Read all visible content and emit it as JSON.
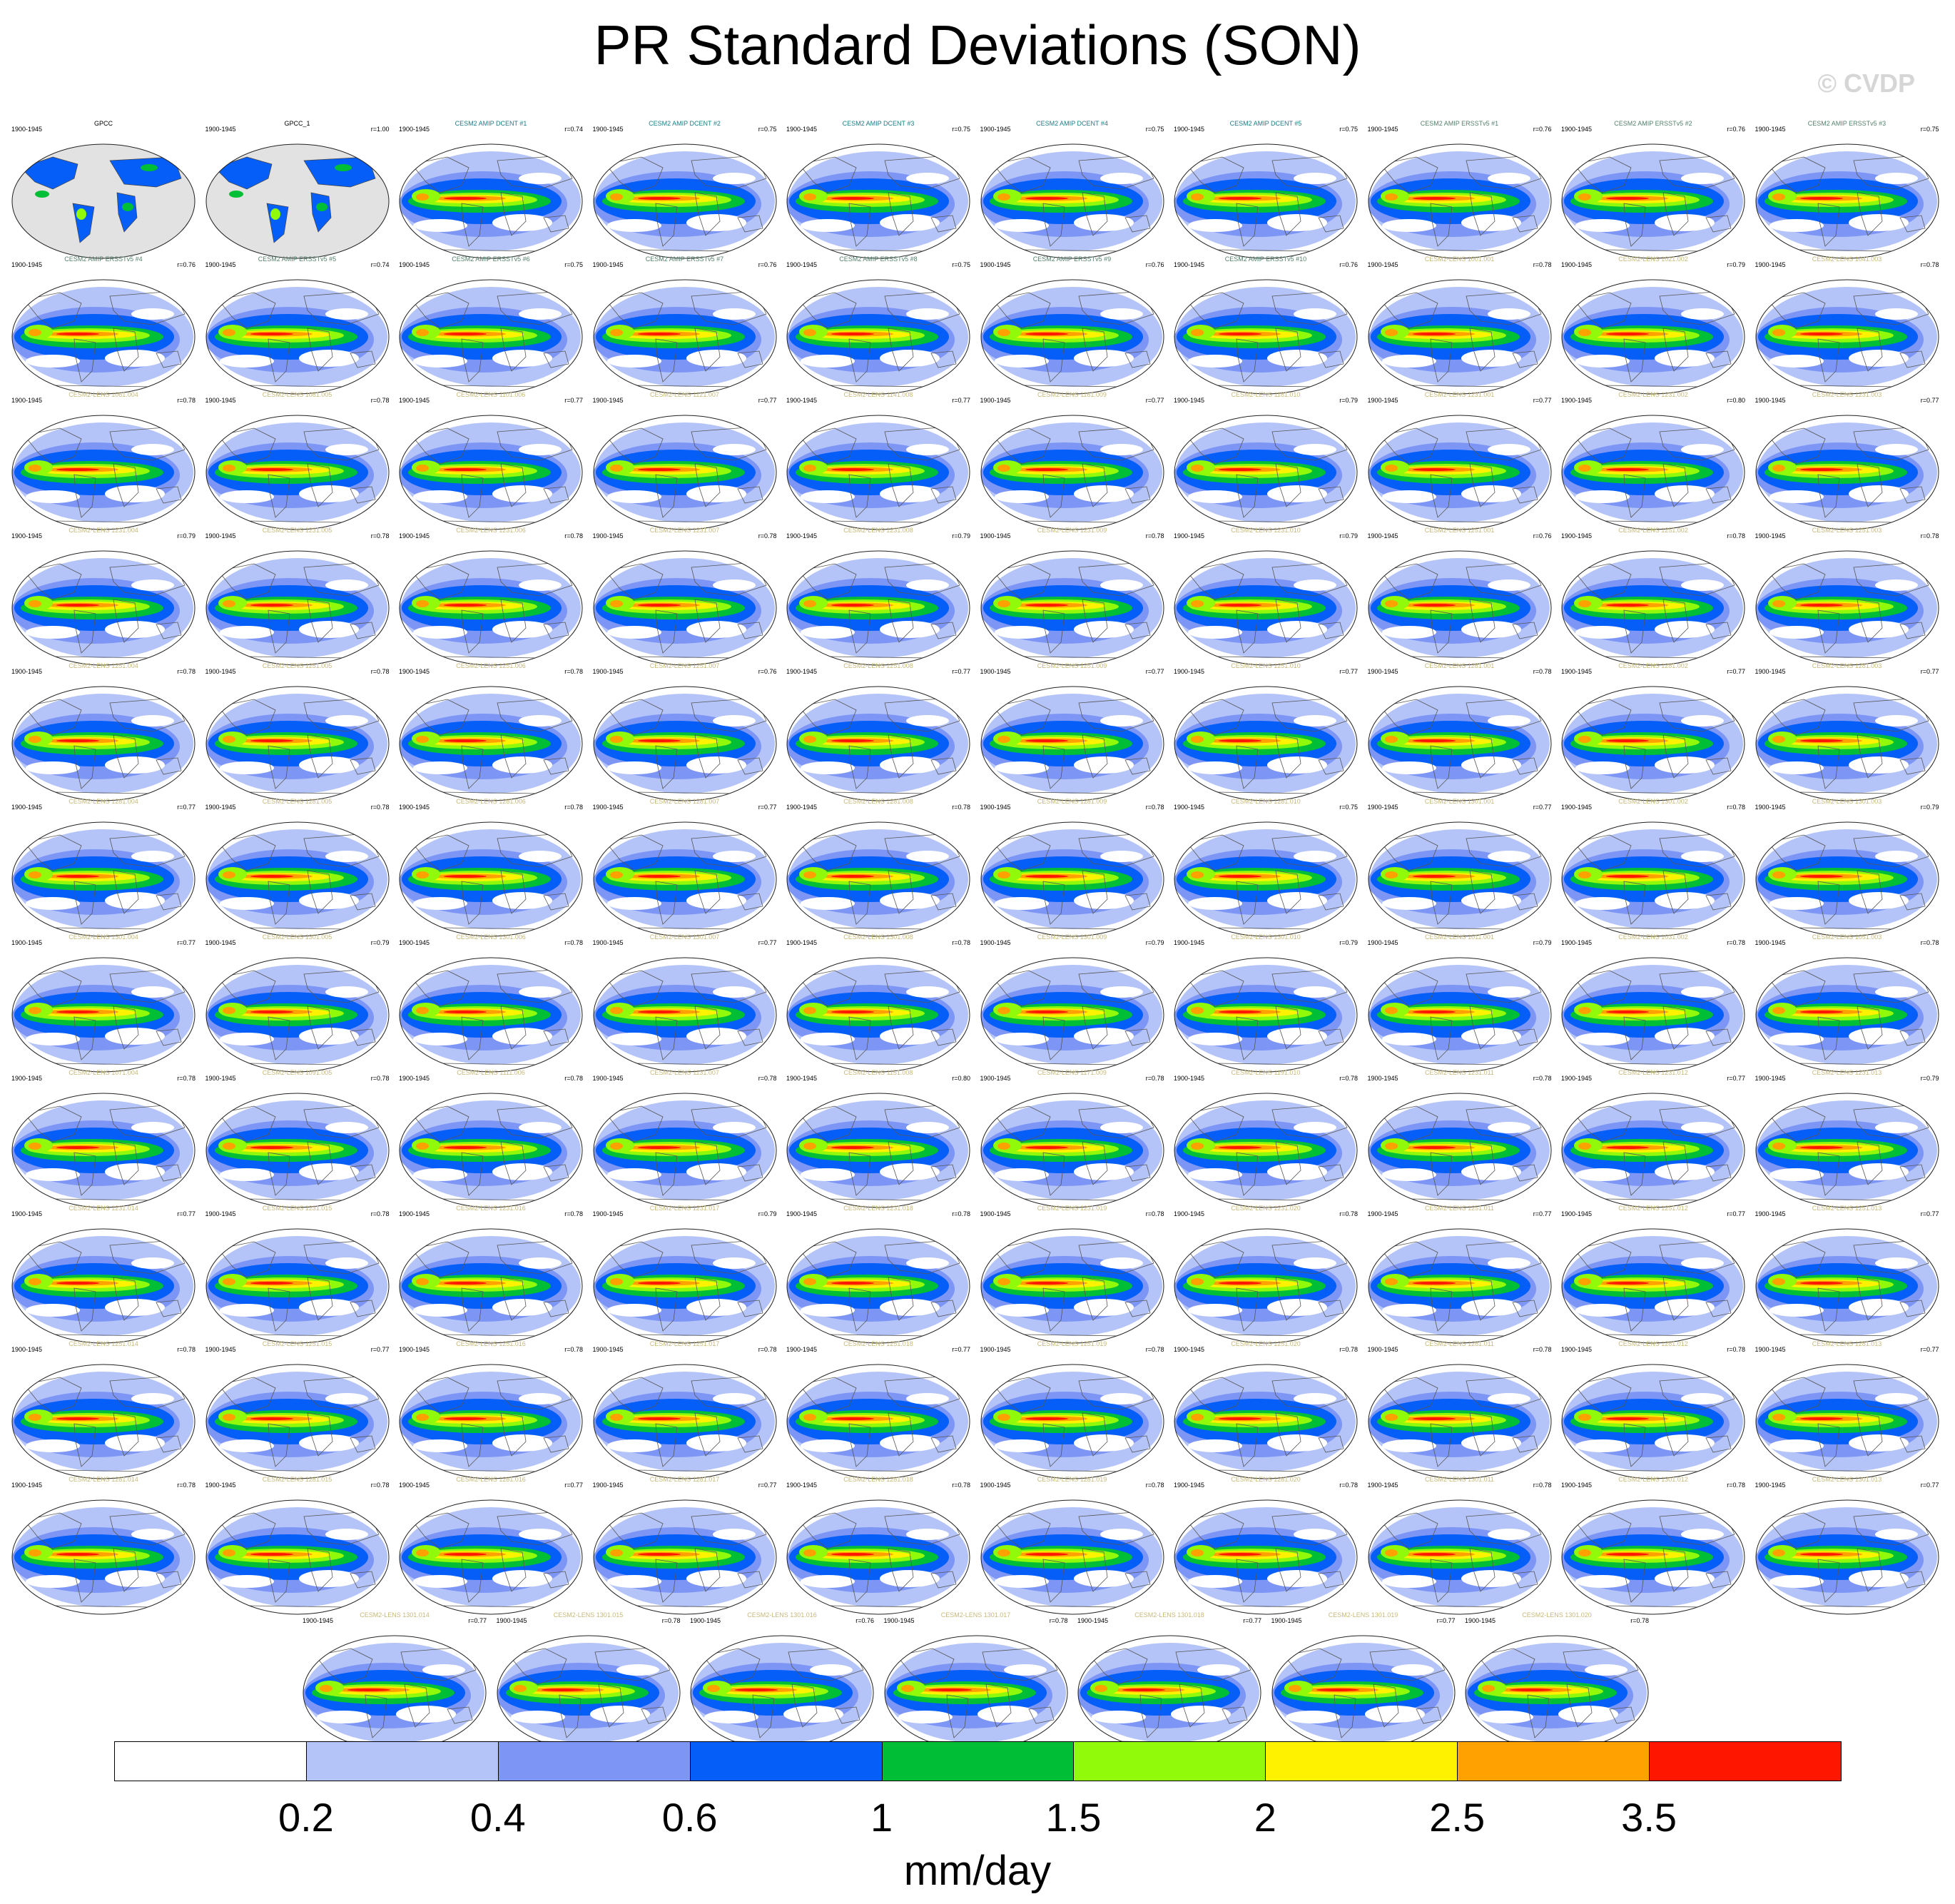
{
  "title": "PR Standard Deviations (SON)",
  "credit": "© CVDP",
  "chart_data": {
    "type": "heatmap",
    "title": "PR Standard Deviations (SON)",
    "units": "mm/day",
    "colorbar": {
      "ticks": [
        "0.2",
        "0.4",
        "0.6",
        "1",
        "1.5",
        "2",
        "2.5",
        "3.5"
      ],
      "levels": [
        0.2,
        0.4,
        0.6,
        1,
        1.5,
        2,
        2.5,
        3.5
      ],
      "colors": [
        "#ffffff",
        "#b4c4f8",
        "#7d96f5",
        "#055ef8",
        "#00bf37",
        "#91f90a",
        "#fff200",
        "#ffa100",
        "#ff1600"
      ]
    },
    "name_colors": {
      "obs": "#000000",
      "amip_dcent": "#1c7c86",
      "amip_ersst": "#54806c",
      "lens": "#c7b97a"
    },
    "panels": [
      {
        "name": "GPCC",
        "years": "1900-1945",
        "r": "",
        "group": "obs"
      },
      {
        "name": "GPCC_1",
        "years": "1900-1945",
        "r": "r=1.00",
        "group": "obs"
      },
      {
        "name": "CESM2 AMIP DCENT #1",
        "years": "1900-1945",
        "r": "r=0.74",
        "group": "amip_dcent"
      },
      {
        "name": "CESM2 AMIP DCENT #2",
        "years": "1900-1945",
        "r": "r=0.75",
        "group": "amip_dcent"
      },
      {
        "name": "CESM2 AMIP DCENT #3",
        "years": "1900-1945",
        "r": "r=0.75",
        "group": "amip_dcent"
      },
      {
        "name": "CESM2 AMIP DCENT #4",
        "years": "1900-1945",
        "r": "r=0.75",
        "group": "amip_dcent"
      },
      {
        "name": "CESM2 AMIP DCENT #5",
        "years": "1900-1945",
        "r": "r=0.75",
        "group": "amip_dcent"
      },
      {
        "name": "CESM2 AMIP ERSSTv5 #1",
        "years": "1900-1945",
        "r": "r=0.76",
        "group": "amip_ersst"
      },
      {
        "name": "CESM2 AMIP ERSSTv5 #2",
        "years": "1900-1945",
        "r": "r=0.76",
        "group": "amip_ersst"
      },
      {
        "name": "CESM2 AMIP ERSSTv5 #3",
        "years": "1900-1945",
        "r": "r=0.75",
        "group": "amip_ersst"
      },
      {
        "name": "CESM2 AMIP ERSSTv5 #4",
        "years": "1900-1945",
        "r": "r=0.76",
        "group": "amip_ersst"
      },
      {
        "name": "CESM2 AMIP ERSSTv5 #5",
        "years": "1900-1945",
        "r": "r=0.74",
        "group": "amip_ersst"
      },
      {
        "name": "CESM2 AMIP ERSSTv5 #6",
        "years": "1900-1945",
        "r": "r=0.75",
        "group": "amip_ersst"
      },
      {
        "name": "CESM2 AMIP ERSSTv5 #7",
        "years": "1900-1945",
        "r": "r=0.76",
        "group": "amip_ersst"
      },
      {
        "name": "CESM2 AMIP ERSSTv5 #8",
        "years": "1900-1945",
        "r": "r=0.75",
        "group": "amip_ersst"
      },
      {
        "name": "CESM2 AMIP ERSSTv5 #9",
        "years": "1900-1945",
        "r": "r=0.76",
        "group": "amip_ersst"
      },
      {
        "name": "CESM2 AMIP ERSSTv5 #10",
        "years": "1900-1945",
        "r": "r=0.76",
        "group": "amip_ersst"
      },
      {
        "name": "CESM2-LENS 1001.001",
        "years": "1900-1945",
        "r": "r=0.78",
        "group": "lens"
      },
      {
        "name": "CESM2-LENS 1021.002",
        "years": "1900-1945",
        "r": "r=0.79",
        "group": "lens"
      },
      {
        "name": "CESM2-LENS 1041.003",
        "years": "1900-1945",
        "r": "r=0.78",
        "group": "lens"
      },
      {
        "name": "CESM2-LENS 1061.004",
        "years": "1900-1945",
        "r": "r=0.78",
        "group": "lens"
      },
      {
        "name": "CESM2-LENS 1081.005",
        "years": "1900-1945",
        "r": "r=0.78",
        "group": "lens"
      },
      {
        "name": "CESM2-LENS 1101.006",
        "years": "1900-1945",
        "r": "r=0.77",
        "group": "lens"
      },
      {
        "name": "CESM2-LENS 1121.007",
        "years": "1900-1945",
        "r": "r=0.77",
        "group": "lens"
      },
      {
        "name": "CESM2-LENS 1141.008",
        "years": "1900-1945",
        "r": "r=0.77",
        "group": "lens"
      },
      {
        "name": "CESM2-LENS 1161.009",
        "years": "1900-1945",
        "r": "r=0.77",
        "group": "lens"
      },
      {
        "name": "CESM2-LENS 1181.010",
        "years": "1900-1945",
        "r": "r=0.79",
        "group": "lens"
      },
      {
        "name": "CESM2-LENS 1231.001",
        "years": "1900-1945",
        "r": "r=0.77",
        "group": "lens"
      },
      {
        "name": "CESM2-LENS 1231.002",
        "years": "1900-1945",
        "r": "r=0.80",
        "group": "lens"
      },
      {
        "name": "CESM2-LENS 1231.003",
        "years": "1900-1945",
        "r": "r=0.77",
        "group": "lens"
      },
      {
        "name": "CESM2-LENS 1231.004",
        "years": "1900-1945",
        "r": "r=0.79",
        "group": "lens"
      },
      {
        "name": "CESM2-LENS 1231.005",
        "years": "1900-1945",
        "r": "r=0.78",
        "group": "lens"
      },
      {
        "name": "CESM2-LENS 1231.006",
        "years": "1900-1945",
        "r": "r=0.78",
        "group": "lens"
      },
      {
        "name": "CESM2-LENS 1231.007",
        "years": "1900-1945",
        "r": "r=0.78",
        "group": "lens"
      },
      {
        "name": "CESM2-LENS 1231.008",
        "years": "1900-1945",
        "r": "r=0.79",
        "group": "lens"
      },
      {
        "name": "CESM2-LENS 1231.009",
        "years": "1900-1945",
        "r": "r=0.78",
        "group": "lens"
      },
      {
        "name": "CESM2-LENS 1231.010",
        "years": "1900-1945",
        "r": "r=0.79",
        "group": "lens"
      },
      {
        "name": "CESM2-LENS 1251.001",
        "years": "1900-1945",
        "r": "r=0.76",
        "group": "lens"
      },
      {
        "name": "CESM2-LENS 1251.002",
        "years": "1900-1945",
        "r": "r=0.78",
        "group": "lens"
      },
      {
        "name": "CESM2-LENS 1251.003",
        "years": "1900-1945",
        "r": "r=0.78",
        "group": "lens"
      },
      {
        "name": "CESM2-LENS 1251.004",
        "years": "1900-1945",
        "r": "r=0.78",
        "group": "lens"
      },
      {
        "name": "CESM2-LENS 1251.005",
        "years": "1900-1945",
        "r": "r=0.78",
        "group": "lens"
      },
      {
        "name": "CESM2-LENS 1251.006",
        "years": "1900-1945",
        "r": "r=0.78",
        "group": "lens"
      },
      {
        "name": "CESM2-LENS 1251.007",
        "years": "1900-1945",
        "r": "r=0.76",
        "group": "lens"
      },
      {
        "name": "CESM2-LENS 1251.008",
        "years": "1900-1945",
        "r": "r=0.77",
        "group": "lens"
      },
      {
        "name": "CESM2-LENS 1251.009",
        "years": "1900-1945",
        "r": "r=0.77",
        "group": "lens"
      },
      {
        "name": "CESM2-LENS 1251.010",
        "years": "1900-1945",
        "r": "r=0.77",
        "group": "lens"
      },
      {
        "name": "CESM2-LENS 1281.001",
        "years": "1900-1945",
        "r": "r=0.78",
        "group": "lens"
      },
      {
        "name": "CESM2-LENS 1281.002",
        "years": "1900-1945",
        "r": "r=0.77",
        "group": "lens"
      },
      {
        "name": "CESM2-LENS 1281.003",
        "years": "1900-1945",
        "r": "r=0.77",
        "group": "lens"
      },
      {
        "name": "CESM2-LENS 1281.004",
        "years": "1900-1945",
        "r": "r=0.77",
        "group": "lens"
      },
      {
        "name": "CESM2-LENS 1281.005",
        "years": "1900-1945",
        "r": "r=0.78",
        "group": "lens"
      },
      {
        "name": "CESM2-LENS 1281.006",
        "years": "1900-1945",
        "r": "r=0.78",
        "group": "lens"
      },
      {
        "name": "CESM2-LENS 1281.007",
        "years": "1900-1945",
        "r": "r=0.77",
        "group": "lens"
      },
      {
        "name": "CESM2-LENS 1281.008",
        "years": "1900-1945",
        "r": "r=0.78",
        "group": "lens"
      },
      {
        "name": "CESM2-LENS 1281.009",
        "years": "1900-1945",
        "r": "r=0.78",
        "group": "lens"
      },
      {
        "name": "CESM2-LENS 1281.010",
        "years": "1900-1945",
        "r": "r=0.75",
        "group": "lens"
      },
      {
        "name": "CESM2-LENS 1301.001",
        "years": "1900-1945",
        "r": "r=0.77",
        "group": "lens"
      },
      {
        "name": "CESM2-LENS 1301.002",
        "years": "1900-1945",
        "r": "r=0.78",
        "group": "lens"
      },
      {
        "name": "CESM2-LENS 1301.003",
        "years": "1900-1945",
        "r": "r=0.79",
        "group": "lens"
      },
      {
        "name": "CESM2-LENS 1301.004",
        "years": "1900-1945",
        "r": "r=0.77",
        "group": "lens"
      },
      {
        "name": "CESM2-LENS 1301.005",
        "years": "1900-1945",
        "r": "r=0.79",
        "group": "lens"
      },
      {
        "name": "CESM2-LENS 1301.006",
        "years": "1900-1945",
        "r": "r=0.78",
        "group": "lens"
      },
      {
        "name": "CESM2-LENS 1301.007",
        "years": "1900-1945",
        "r": "r=0.77",
        "group": "lens"
      },
      {
        "name": "CESM2-LENS 1301.008",
        "years": "1900-1945",
        "r": "r=0.78",
        "group": "lens"
      },
      {
        "name": "CESM2-LENS 1301.009",
        "years": "1900-1945",
        "r": "r=0.79",
        "group": "lens"
      },
      {
        "name": "CESM2-LENS 1301.010",
        "years": "1900-1945",
        "r": "r=0.79",
        "group": "lens"
      },
      {
        "name": "CESM2-LENS 1011.001",
        "years": "1900-1945",
        "r": "r=0.79",
        "group": "lens"
      },
      {
        "name": "CESM2-LENS 1031.002",
        "years": "1900-1945",
        "r": "r=0.78",
        "group": "lens"
      },
      {
        "name": "CESM2-LENS 1051.003",
        "years": "1900-1945",
        "r": "r=0.78",
        "group": "lens"
      },
      {
        "name": "CESM2-LENS 1071.004",
        "years": "1900-1945",
        "r": "r=0.78",
        "group": "lens"
      },
      {
        "name": "CESM2-LENS 1091.005",
        "years": "1900-1945",
        "r": "r=0.78",
        "group": "lens"
      },
      {
        "name": "CESM2-LENS 1111.006",
        "years": "1900-1945",
        "r": "r=0.78",
        "group": "lens"
      },
      {
        "name": "CESM2-LENS 1131.007",
        "years": "1900-1945",
        "r": "r=0.78",
        "group": "lens"
      },
      {
        "name": "CESM2-LENS 1151.008",
        "years": "1900-1945",
        "r": "r=0.80",
        "group": "lens"
      },
      {
        "name": "CESM2-LENS 1171.009",
        "years": "1900-1945",
        "r": "r=0.78",
        "group": "lens"
      },
      {
        "name": "CESM2-LENS 1191.010",
        "years": "1900-1945",
        "r": "r=0.78",
        "group": "lens"
      },
      {
        "name": "CESM2-LENS 1231.011",
        "years": "1900-1945",
        "r": "r=0.78",
        "group": "lens"
      },
      {
        "name": "CESM2-LENS 1231.012",
        "years": "1900-1945",
        "r": "r=0.77",
        "group": "lens"
      },
      {
        "name": "CESM2-LENS 1231.013",
        "years": "1900-1945",
        "r": "r=0.79",
        "group": "lens"
      },
      {
        "name": "CESM2-LENS 1231.014",
        "years": "1900-1945",
        "r": "r=0.77",
        "group": "lens"
      },
      {
        "name": "CESM2-LENS 1231.015",
        "years": "1900-1945",
        "r": "r=0.78",
        "group": "lens"
      },
      {
        "name": "CESM2-LENS 1231.016",
        "years": "1900-1945",
        "r": "r=0.78",
        "group": "lens"
      },
      {
        "name": "CESM2-LENS 1231.017",
        "years": "1900-1945",
        "r": "r=0.79",
        "group": "lens"
      },
      {
        "name": "CESM2-LENS 1231.018",
        "years": "1900-1945",
        "r": "r=0.78",
        "group": "lens"
      },
      {
        "name": "CESM2-LENS 1231.019",
        "years": "1900-1945",
        "r": "r=0.78",
        "group": "lens"
      },
      {
        "name": "CESM2-LENS 1231.020",
        "years": "1900-1945",
        "r": "r=0.78",
        "group": "lens"
      },
      {
        "name": "CESM2-LENS 1251.011",
        "years": "1900-1945",
        "r": "r=0.77",
        "group": "lens"
      },
      {
        "name": "CESM2-LENS 1251.012",
        "years": "1900-1945",
        "r": "r=0.77",
        "group": "lens"
      },
      {
        "name": "CESM2-LENS 1251.013",
        "years": "1900-1945",
        "r": "r=0.77",
        "group": "lens"
      },
      {
        "name": "CESM2-LENS 1251.014",
        "years": "1900-1945",
        "r": "r=0.78",
        "group": "lens"
      },
      {
        "name": "CESM2-LENS 1251.015",
        "years": "1900-1945",
        "r": "r=0.77",
        "group": "lens"
      },
      {
        "name": "CESM2-LENS 1251.016",
        "years": "1900-1945",
        "r": "r=0.78",
        "group": "lens"
      },
      {
        "name": "CESM2-LENS 1251.017",
        "years": "1900-1945",
        "r": "r=0.78",
        "group": "lens"
      },
      {
        "name": "CESM2-LENS 1251.018",
        "years": "1900-1945",
        "r": "r=0.77",
        "group": "lens"
      },
      {
        "name": "CESM2-LENS 1251.019",
        "years": "1900-1945",
        "r": "r=0.78",
        "group": "lens"
      },
      {
        "name": "CESM2-LENS 1251.020",
        "years": "1900-1945",
        "r": "r=0.78",
        "group": "lens"
      },
      {
        "name": "CESM2-LENS 1281.011",
        "years": "1900-1945",
        "r": "r=0.78",
        "group": "lens"
      },
      {
        "name": "CESM2-LENS 1281.012",
        "years": "1900-1945",
        "r": "r=0.78",
        "group": "lens"
      },
      {
        "name": "CESM2-LENS 1281.013",
        "years": "1900-1945",
        "r": "r=0.77",
        "group": "lens"
      },
      {
        "name": "CESM2-LENS 1281.014",
        "years": "1900-1945",
        "r": "r=0.78",
        "group": "lens"
      },
      {
        "name": "CESM2-LENS 1281.015",
        "years": "1900-1945",
        "r": "r=0.78",
        "group": "lens"
      },
      {
        "name": "CESM2-LENS 1281.016",
        "years": "1900-1945",
        "r": "r=0.77",
        "group": "lens"
      },
      {
        "name": "CESM2-LENS 1281.017",
        "years": "1900-1945",
        "r": "r=0.77",
        "group": "lens"
      },
      {
        "name": "CESM2-LENS 1281.018",
        "years": "1900-1945",
        "r": "r=0.78",
        "group": "lens"
      },
      {
        "name": "CESM2-LENS 1281.019",
        "years": "1900-1945",
        "r": "r=0.78",
        "group": "lens"
      },
      {
        "name": "CESM2-LENS 1281.020",
        "years": "1900-1945",
        "r": "r=0.78",
        "group": "lens"
      },
      {
        "name": "CESM2-LENS 1301.011",
        "years": "1900-1945",
        "r": "r=0.78",
        "group": "lens"
      },
      {
        "name": "CESM2-LENS 1301.012",
        "years": "1900-1945",
        "r": "r=0.78",
        "group": "lens"
      },
      {
        "name": "CESM2-LENS 1301.013",
        "years": "1900-1945",
        "r": "r=0.77",
        "group": "lens"
      },
      {
        "name": "CESM2-LENS 1301.014",
        "years": "1900-1945",
        "r": "r=0.77",
        "group": "lens"
      },
      {
        "name": "CESM2-LENS 1301.015",
        "years": "1900-1945",
        "r": "r=0.78",
        "group": "lens"
      },
      {
        "name": "CESM2-LENS 1301.016",
        "years": "1900-1945",
        "r": "r=0.76",
        "group": "lens"
      },
      {
        "name": "CESM2-LENS 1301.017",
        "years": "1900-1945",
        "r": "r=0.78",
        "group": "lens"
      },
      {
        "name": "CESM2-LENS 1301.018",
        "years": "1900-1945",
        "r": "r=0.77",
        "group": "lens"
      },
      {
        "name": "CESM2-LENS 1301.019",
        "years": "1900-1945",
        "r": "r=0.77",
        "group": "lens"
      },
      {
        "name": "CESM2-LENS 1301.020",
        "years": "1900-1945",
        "r": "r=0.78",
        "group": "lens"
      }
    ]
  }
}
